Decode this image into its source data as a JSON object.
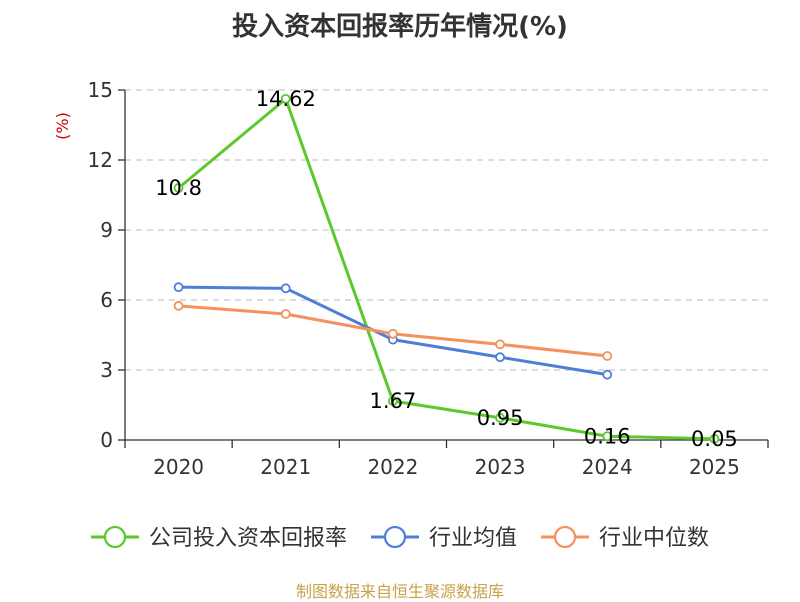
{
  "title": "投入资本回报率历年情况(%)",
  "source": "制图数据来自恒生聚源数据库",
  "chart_data": {
    "type": "line",
    "title": "投入资本回报率历年情况(%)",
    "ylabel": "(%)",
    "categories": [
      "2020",
      "2021",
      "2022",
      "2023",
      "2024",
      "2025"
    ],
    "ylim": [
      0,
      15
    ],
    "yticks": [
      0,
      3,
      6,
      9,
      12,
      15
    ],
    "grid": true,
    "legend_position": "bottom",
    "series": [
      {
        "name": "公司投入资本回报率",
        "color": "#5cc92a",
        "values": [
          10.8,
          14.62,
          1.67,
          0.95,
          0.16,
          0.05
        ],
        "labels": [
          "10.8",
          "14.62",
          "1.67",
          "0.95",
          "0.16",
          "0.05"
        ]
      },
      {
        "name": "行业均值",
        "color": "#4e7fd8",
        "values": [
          6.55,
          6.5,
          4.3,
          3.55,
          2.8,
          null
        ]
      },
      {
        "name": "行业中位数",
        "color": "#f5915c",
        "values": [
          5.75,
          5.4,
          4.55,
          4.1,
          3.6,
          null
        ]
      }
    ]
  }
}
